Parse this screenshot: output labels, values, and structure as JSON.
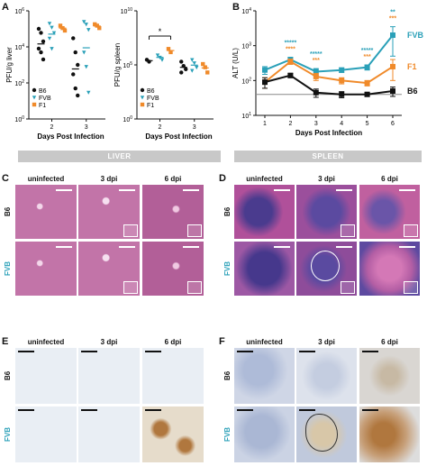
{
  "panels": {
    "A": "A",
    "B": "B",
    "C": "C",
    "D": "D",
    "E": "E",
    "F": "F"
  },
  "chart_data": [
    {
      "type": "scatter",
      "panel": "A-liver",
      "ylabel": "PFU/g liver",
      "xlabel": "Days Post Infection",
      "categories": [
        "2",
        "3"
      ],
      "ylog": true,
      "ylim": [
        1,
        1000000
      ],
      "ytick_exponents": [
        "0",
        "2",
        "4",
        "6"
      ],
      "legend": [
        "B6",
        "FVB",
        "F1"
      ],
      "series": [
        {
          "name": "B6",
          "marker": "circle",
          "color": "#111111",
          "points": {
            "2": [
              100000,
              60000,
              20000,
              8000,
              5000,
              2000
            ],
            "3": [
              30000,
              5000,
              1000,
              300,
              50,
              20
            ]
          }
        },
        {
          "name": "FVB",
          "marker": "triangle-down",
          "color": "#2aa0b8",
          "points": {
            "2": [
              200000,
              120000,
              60000,
              30000,
              8000
            ],
            "3": [
              250000,
              180000,
              90000,
              5000,
              800,
              30
            ]
          }
        },
        {
          "name": "F1",
          "marker": "square",
          "color": "#f08a2a",
          "points": {
            "2": [
              150000,
              110000,
              80000
            ],
            "3": [
              180000,
              150000,
              110000
            ]
          }
        }
      ]
    },
    {
      "type": "scatter",
      "panel": "A-spleen",
      "ylabel": "PFU/g spleen",
      "xlabel": "Days Post Infection",
      "categories": [
        "2",
        "3"
      ],
      "ylog": true,
      "ylim": [
        1,
        10000000000
      ],
      "ytick_exponents": [
        "0",
        "5",
        "10"
      ],
      "annotation": "*",
      "legend": [
        "B6",
        "FVB",
        "F1"
      ],
      "series": [
        {
          "name": "B6",
          "marker": "circle",
          "color": "#111111",
          "points": {
            "2": [
              300000,
              200000
            ],
            "3": [
              200000,
              80000,
              40000,
              20000
            ]
          }
        },
        {
          "name": "FVB",
          "marker": "triangle-down",
          "color": "#2aa0b8",
          "points": {
            "2": [
              800000,
              500000,
              300000
            ],
            "3": [
              300000,
              150000,
              60000,
              30000
            ]
          }
        },
        {
          "name": "F1",
          "marker": "square",
          "color": "#f08a2a",
          "points": {
            "2": [
              3000000,
              1500000
            ],
            "3": [
              120000,
              60000,
              20000
            ]
          }
        }
      ]
    },
    {
      "type": "line",
      "panel": "B",
      "ylabel": "ALT (U/L)",
      "xlabel": "Days Post Infection",
      "x": [
        1,
        2,
        3,
        4,
        5,
        6
      ],
      "ylog": true,
      "ylim": [
        10,
        10000
      ],
      "ytick_exponents": [
        "1",
        "2",
        "3",
        "4"
      ],
      "baseline": 40,
      "series": [
        {
          "name": "FVB",
          "color": "#2aa0b8",
          "values": [
            200,
            400,
            180,
            200,
            240,
            2000
          ],
          "err": [
            50,
            60,
            40,
            30,
            40,
            1500
          ]
        },
        {
          "name": "F1",
          "color": "#f08a2a",
          "values": [
            90,
            350,
            130,
            100,
            85,
            250
          ],
          "err": [
            30,
            60,
            30,
            20,
            15,
            150
          ]
        },
        {
          "name": "B6",
          "color": "#111111",
          "values": [
            90,
            140,
            45,
            40,
            40,
            50
          ],
          "err": [
            30,
            20,
            12,
            8,
            5,
            15
          ]
        }
      ],
      "annotations": [
        {
          "x": 2,
          "lines": [
            {
              "text": "*****",
              "color": "#2aa0b8"
            },
            {
              "text": "****",
              "color": "#f08a2a"
            }
          ]
        },
        {
          "x": 3,
          "lines": [
            {
              "text": "*****",
              "color": "#2aa0b8"
            },
            {
              "text": "***",
              "color": "#f08a2a"
            }
          ]
        },
        {
          "x": 5,
          "lines": [
            {
              "text": "*****",
              "color": "#2aa0b8"
            },
            {
              "text": "***",
              "color": "#f08a2a"
            }
          ]
        },
        {
          "x": 6,
          "lines": [
            {
              "text": "**",
              "color": "#2aa0b8"
            },
            {
              "text": "***",
              "color": "#f08a2a"
            }
          ]
        }
      ]
    }
  ],
  "sections": {
    "liver": "LIVER",
    "spleen": "SPLEEN"
  },
  "histology": {
    "columns": [
      "uninfected",
      "3 dpi",
      "6 dpi"
    ],
    "rows": [
      "B6",
      "FVB"
    ]
  },
  "colors": {
    "b6": "#111111",
    "fvb": "#2aa0b8",
    "f1": "#f08a2a",
    "he_liver": "#c274a8",
    "he_spleen": "#7a4c9a",
    "ihc_bg": "#e9eef4",
    "ihc_stain": "#b0773e"
  }
}
